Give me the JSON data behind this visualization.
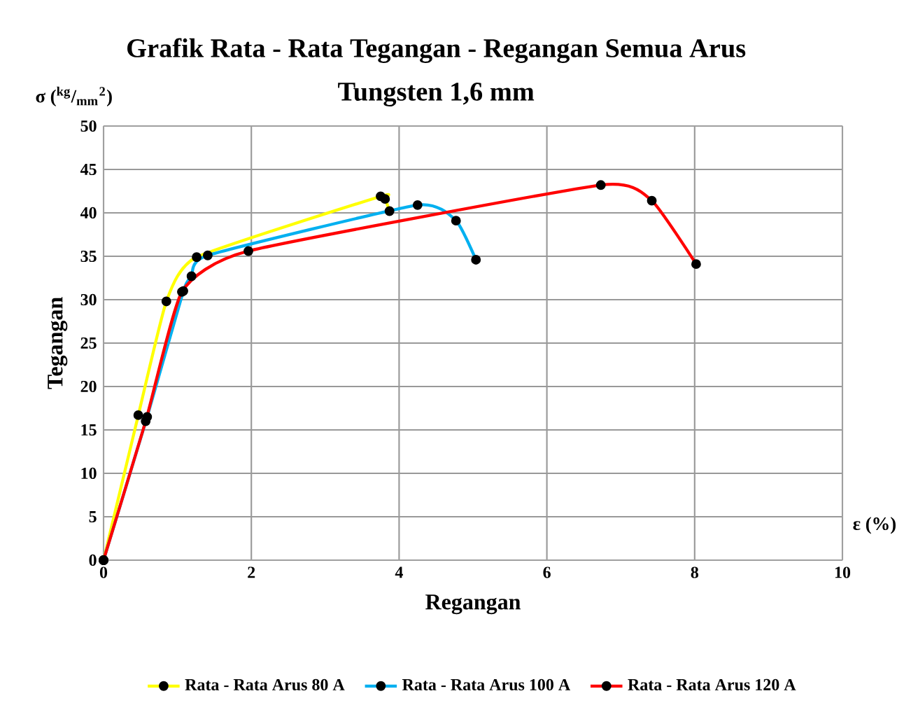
{
  "chart_data": {
    "type": "line",
    "title": "Grafik Rata - Rata Tegangan - Regangan Semua Arus",
    "subtitle": "Tungsten 1,6 mm",
    "xlabel": "Regangan",
    "ylabel": "Tegangan",
    "annotations": [
      "σ ($^{kg}$/$_{mm}$$^{2}$)",
      "ε (%)"
    ],
    "xlim": [
      0,
      10
    ],
    "xticks": [
      0,
      2,
      4,
      6,
      8,
      10
    ],
    "ylim": [
      0,
      50
    ],
    "yticks": [
      0,
      5,
      10,
      15,
      20,
      25,
      30,
      35,
      40,
      45,
      50
    ],
    "grid": true,
    "legend": "bottom",
    "marker": "circle",
    "line_style": "solid",
    "series": [
      {
        "name": "Rata - Rata Arus 80 A",
        "color": "#ffff00",
        "x": [
          0,
          0.47,
          0.85,
          1.26,
          3.75,
          3.81,
          3.87
        ],
        "values": [
          0,
          16.7,
          29.8,
          34.9,
          41.9,
          41.6,
          40.2
        ]
      },
      {
        "name": "Rata - Rata Arus 100 A",
        "color": "#00b0f0",
        "x": [
          0,
          0.59,
          1.08,
          1.19,
          1.41,
          4.25,
          4.77,
          5.04
        ],
        "values": [
          0,
          16.5,
          31,
          32.7,
          35.1,
          40.9,
          39.1,
          34.6
        ]
      },
      {
        "name": "Rata - Rata Arus 120 A",
        "color": "#ff0000",
        "x": [
          0,
          0.57,
          1.06,
          1.96,
          6.73,
          7.42,
          8.02
        ],
        "values": [
          0,
          16,
          30.9,
          35.6,
          43.2,
          41.4,
          34.1
        ]
      }
    ]
  }
}
